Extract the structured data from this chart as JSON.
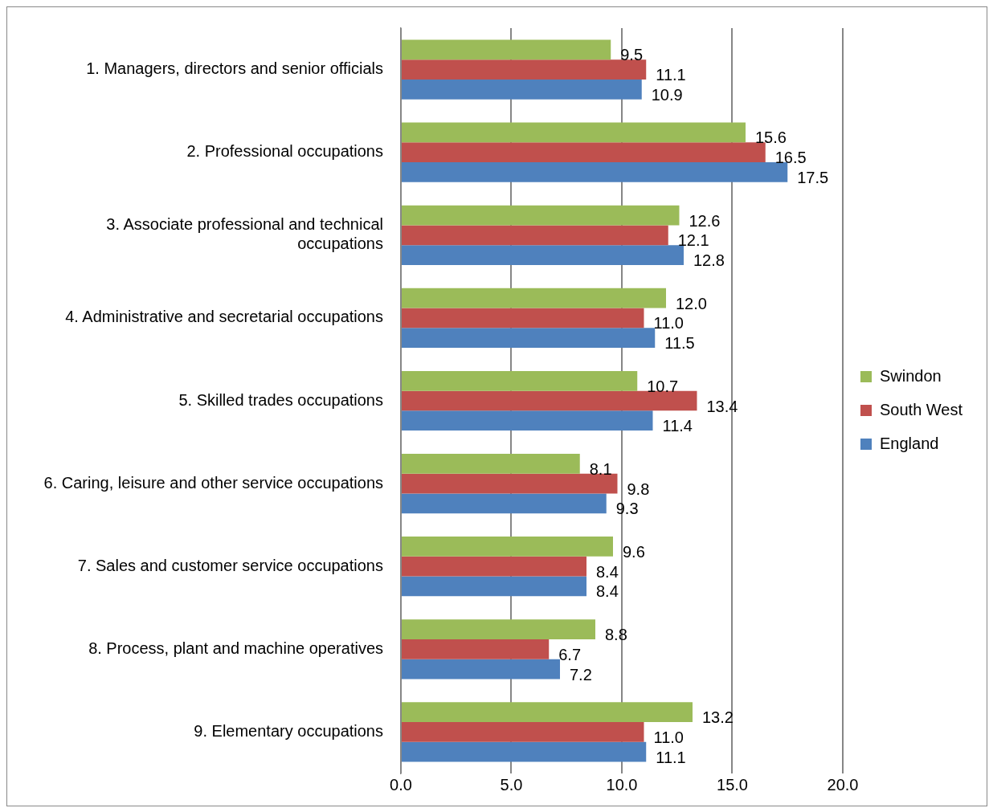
{
  "chart_data": {
    "type": "bar",
    "orientation": "horizontal",
    "categories": [
      "1. Managers, directors and senior officials",
      "2. Professional occupations",
      "3. Associate professional and technical occupations",
      "4. Administrative and secretarial occupations",
      "5. Skilled trades occupations",
      "6. Caring, leisure and other service occupations",
      "7. Sales and customer service occupations",
      "8. Process, plant and machine operatives",
      "9. Elementary occupations"
    ],
    "series": [
      {
        "name": "Swindon",
        "color": "#9bbb59",
        "values": [
          9.5,
          15.6,
          12.6,
          12.0,
          10.7,
          8.1,
          9.6,
          8.8,
          13.2
        ],
        "value_labels": [
          "9.5",
          "15.6",
          "12.6",
          "12.0",
          "10.7",
          "8.1",
          "9.6",
          "8.8",
          "13.2"
        ]
      },
      {
        "name": "South West",
        "color": "#c0504d",
        "values": [
          11.1,
          16.5,
          12.1,
          11.0,
          13.4,
          9.8,
          8.4,
          6.7,
          11.0
        ],
        "value_labels": [
          "11.1",
          "16.5",
          "12.1",
          "11.0",
          "13.4",
          "9.8",
          "8.4",
          "6.7",
          "11.0"
        ]
      },
      {
        "name": "England",
        "color": "#4f81bd",
        "values": [
          10.9,
          17.5,
          12.8,
          11.5,
          11.4,
          9.3,
          8.4,
          7.2,
          11.1
        ],
        "value_labels": [
          "10.9",
          "17.5",
          "12.8",
          "11.5",
          "11.4",
          "9.3",
          "8.4",
          "7.2",
          "11.1"
        ]
      }
    ],
    "xlim": [
      0,
      20
    ],
    "xticks": [
      {
        "value": 0,
        "label": "0.0"
      },
      {
        "value": 5,
        "label": "5.0"
      },
      {
        "value": 10,
        "label": "10.0"
      },
      {
        "value": 15,
        "label": "15.0"
      },
      {
        "value": 20,
        "label": "20.0"
      }
    ],
    "grid": "x",
    "legend": "right"
  }
}
